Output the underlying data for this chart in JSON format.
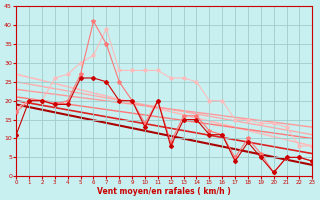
{
  "xlabel": "Vent moyen/en rafales ( km/h )",
  "xlim": [
    0,
    23
  ],
  "ylim": [
    0,
    45
  ],
  "yticks": [
    0,
    5,
    10,
    15,
    20,
    25,
    30,
    35,
    40,
    45
  ],
  "xticks": [
    0,
    1,
    2,
    3,
    4,
    5,
    6,
    7,
    8,
    9,
    10,
    11,
    12,
    13,
    14,
    15,
    16,
    17,
    18,
    19,
    20,
    21,
    22,
    23
  ],
  "bg_color": "#c8f0f0",
  "grid_color": "#a0cccc",
  "lines": [
    {
      "x": [
        0,
        1,
        2,
        3,
        4,
        5,
        6,
        7,
        8,
        9,
        10,
        11,
        12,
        13,
        14,
        15,
        16,
        17,
        18,
        19,
        20,
        21,
        22,
        23
      ],
      "y": [
        18,
        20,
        20,
        26,
        27,
        30,
        32,
        39,
        28,
        28,
        28,
        28,
        26,
        26,
        25,
        20,
        20,
        15,
        15,
        14,
        14,
        13,
        8,
        8
      ],
      "color": "#ffbbbb",
      "lw": 0.8,
      "marker": "o",
      "ms": 2.0,
      "zorder": 2
    },
    {
      "x": [
        0,
        1,
        2,
        3,
        4,
        5,
        6,
        7,
        8,
        9,
        10,
        11,
        12,
        13,
        14,
        15,
        16,
        17,
        18,
        19,
        20,
        21,
        22,
        23
      ],
      "y": [
        17,
        20,
        20,
        19,
        20,
        27,
        41,
        35,
        25,
        20,
        14,
        20,
        9,
        16,
        16,
        12,
        11,
        5,
        10,
        6,
        1,
        5,
        5,
        4
      ],
      "color": "#ff7777",
      "lw": 0.8,
      "marker": "*",
      "ms": 3.0,
      "zorder": 3
    },
    {
      "x": [
        0,
        1,
        2,
        3,
        4,
        5,
        6,
        7,
        8,
        9,
        10,
        11,
        12,
        13,
        14,
        15,
        16,
        17,
        18,
        19,
        20,
        21,
        22,
        23
      ],
      "y": [
        11,
        20,
        20,
        19,
        19,
        26,
        26,
        25,
        20,
        20,
        13,
        20,
        8,
        15,
        15,
        11,
        11,
        4,
        9,
        5,
        1,
        5,
        5,
        4
      ],
      "color": "#cc0000",
      "lw": 0.8,
      "marker": "D",
      "ms": 2.0,
      "zorder": 4
    }
  ],
  "trend_lines": [
    {
      "x": [
        0,
        23
      ],
      "y": [
        27,
        8
      ],
      "color": "#ffbbbb",
      "lw": 1.2
    },
    {
      "x": [
        0,
        23
      ],
      "y": [
        25,
        11
      ],
      "color": "#ffaaaa",
      "lw": 1.0
    },
    {
      "x": [
        0,
        23
      ],
      "y": [
        23,
        13
      ],
      "color": "#ff9999",
      "lw": 1.0
    },
    {
      "x": [
        0,
        23
      ],
      "y": [
        21,
        10
      ],
      "color": "#ff7777",
      "lw": 1.0
    },
    {
      "x": [
        0,
        23
      ],
      "y": [
        20,
        6
      ],
      "color": "#dd2222",
      "lw": 1.2
    },
    {
      "x": [
        0,
        23
      ],
      "y": [
        19,
        3
      ],
      "color": "#aa0000",
      "lw": 1.5
    }
  ],
  "tick_color": "#cc0000",
  "label_color": "#cc0000",
  "axis_color": "#cc0000"
}
